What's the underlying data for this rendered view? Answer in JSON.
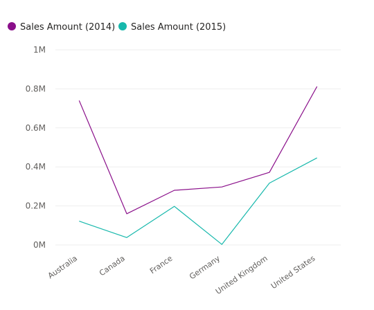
{
  "chart_data": {
    "type": "line",
    "categories": [
      "Australia",
      "Canada",
      "France",
      "Germany",
      "United Kingdom",
      "United States"
    ],
    "series": [
      {
        "name": "Sales Amount (2014)",
        "color": "#8a0f8a",
        "values": [
          740000,
          160000,
          280000,
          297000,
          372000,
          812000
        ]
      },
      {
        "name": "Sales Amount (2015)",
        "color": "#17b8ac",
        "values": [
          122000,
          38000,
          198000,
          3000,
          317000,
          446000
        ]
      }
    ],
    "y_ticks": [
      {
        "value": 0,
        "label": "0M"
      },
      {
        "value": 200000,
        "label": "0.2M"
      },
      {
        "value": 400000,
        "label": "0.4M"
      },
      {
        "value": 600000,
        "label": "0.6M"
      },
      {
        "value": 800000,
        "label": "0.8M"
      },
      {
        "value": 1000000,
        "label": "1M"
      }
    ],
    "ylim": [
      0,
      1000000
    ],
    "grid": true,
    "legend_position": "top-left"
  }
}
